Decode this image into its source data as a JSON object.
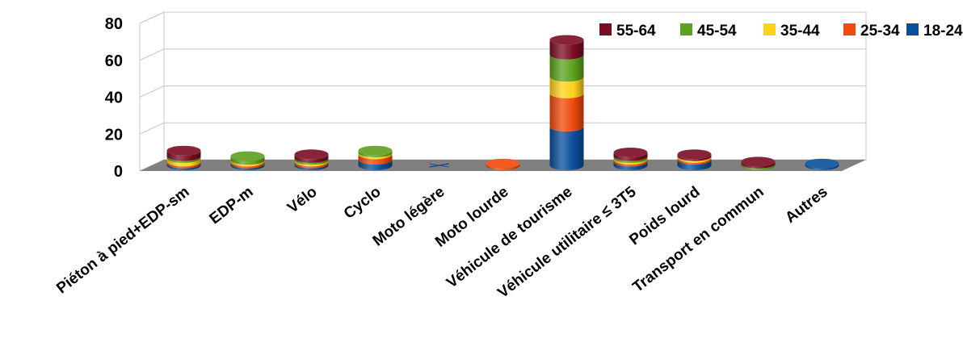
{
  "chart_data": {
    "type": "bar",
    "stacked": true,
    "style": "3d-cylinder",
    "title": "",
    "xlabel": "",
    "ylabel": "",
    "ylim": [
      0,
      80
    ],
    "yticks": [
      0,
      20,
      40,
      60,
      80
    ],
    "grid": true,
    "legend_position": "top-right",
    "categories": [
      "Piéton à pied+EDP-sm",
      "EDP-m",
      "Vélo",
      "Cyclo",
      "Moto légère",
      "Moto lourde",
      "Véhicule de tourisme",
      "Véhicule utilitaire ≤ 3T5",
      "Poids lourd",
      "Transport en commun",
      "Autres"
    ],
    "series": [
      {
        "name": "18-24",
        "color": "#0a4f9c",
        "values": [
          1,
          1,
          1,
          3,
          0,
          0,
          21,
          2,
          3,
          0,
          1
        ]
      },
      {
        "name": "25-34",
        "color": "#f04a0c",
        "values": [
          1,
          1,
          1,
          3,
          0,
          1,
          18,
          1,
          1,
          0,
          0
        ]
      },
      {
        "name": "35-44",
        "color": "#ffd21a",
        "values": [
          2,
          1,
          1,
          1,
          0,
          0,
          9,
          1,
          1,
          0,
          0
        ]
      },
      {
        "name": "45-54",
        "color": "#5ea11c",
        "values": [
          1,
          2,
          1,
          1,
          0,
          0,
          12,
          1,
          0,
          1,
          0
        ]
      },
      {
        "name": "55-64",
        "color": "#7b0c22",
        "values": [
          3,
          0,
          2,
          0,
          0,
          0,
          8,
          2,
          1,
          1,
          0
        ]
      }
    ],
    "legend_order": [
      "55-64",
      "45-54",
      "35-44",
      "25-34",
      "18-24"
    ]
  }
}
